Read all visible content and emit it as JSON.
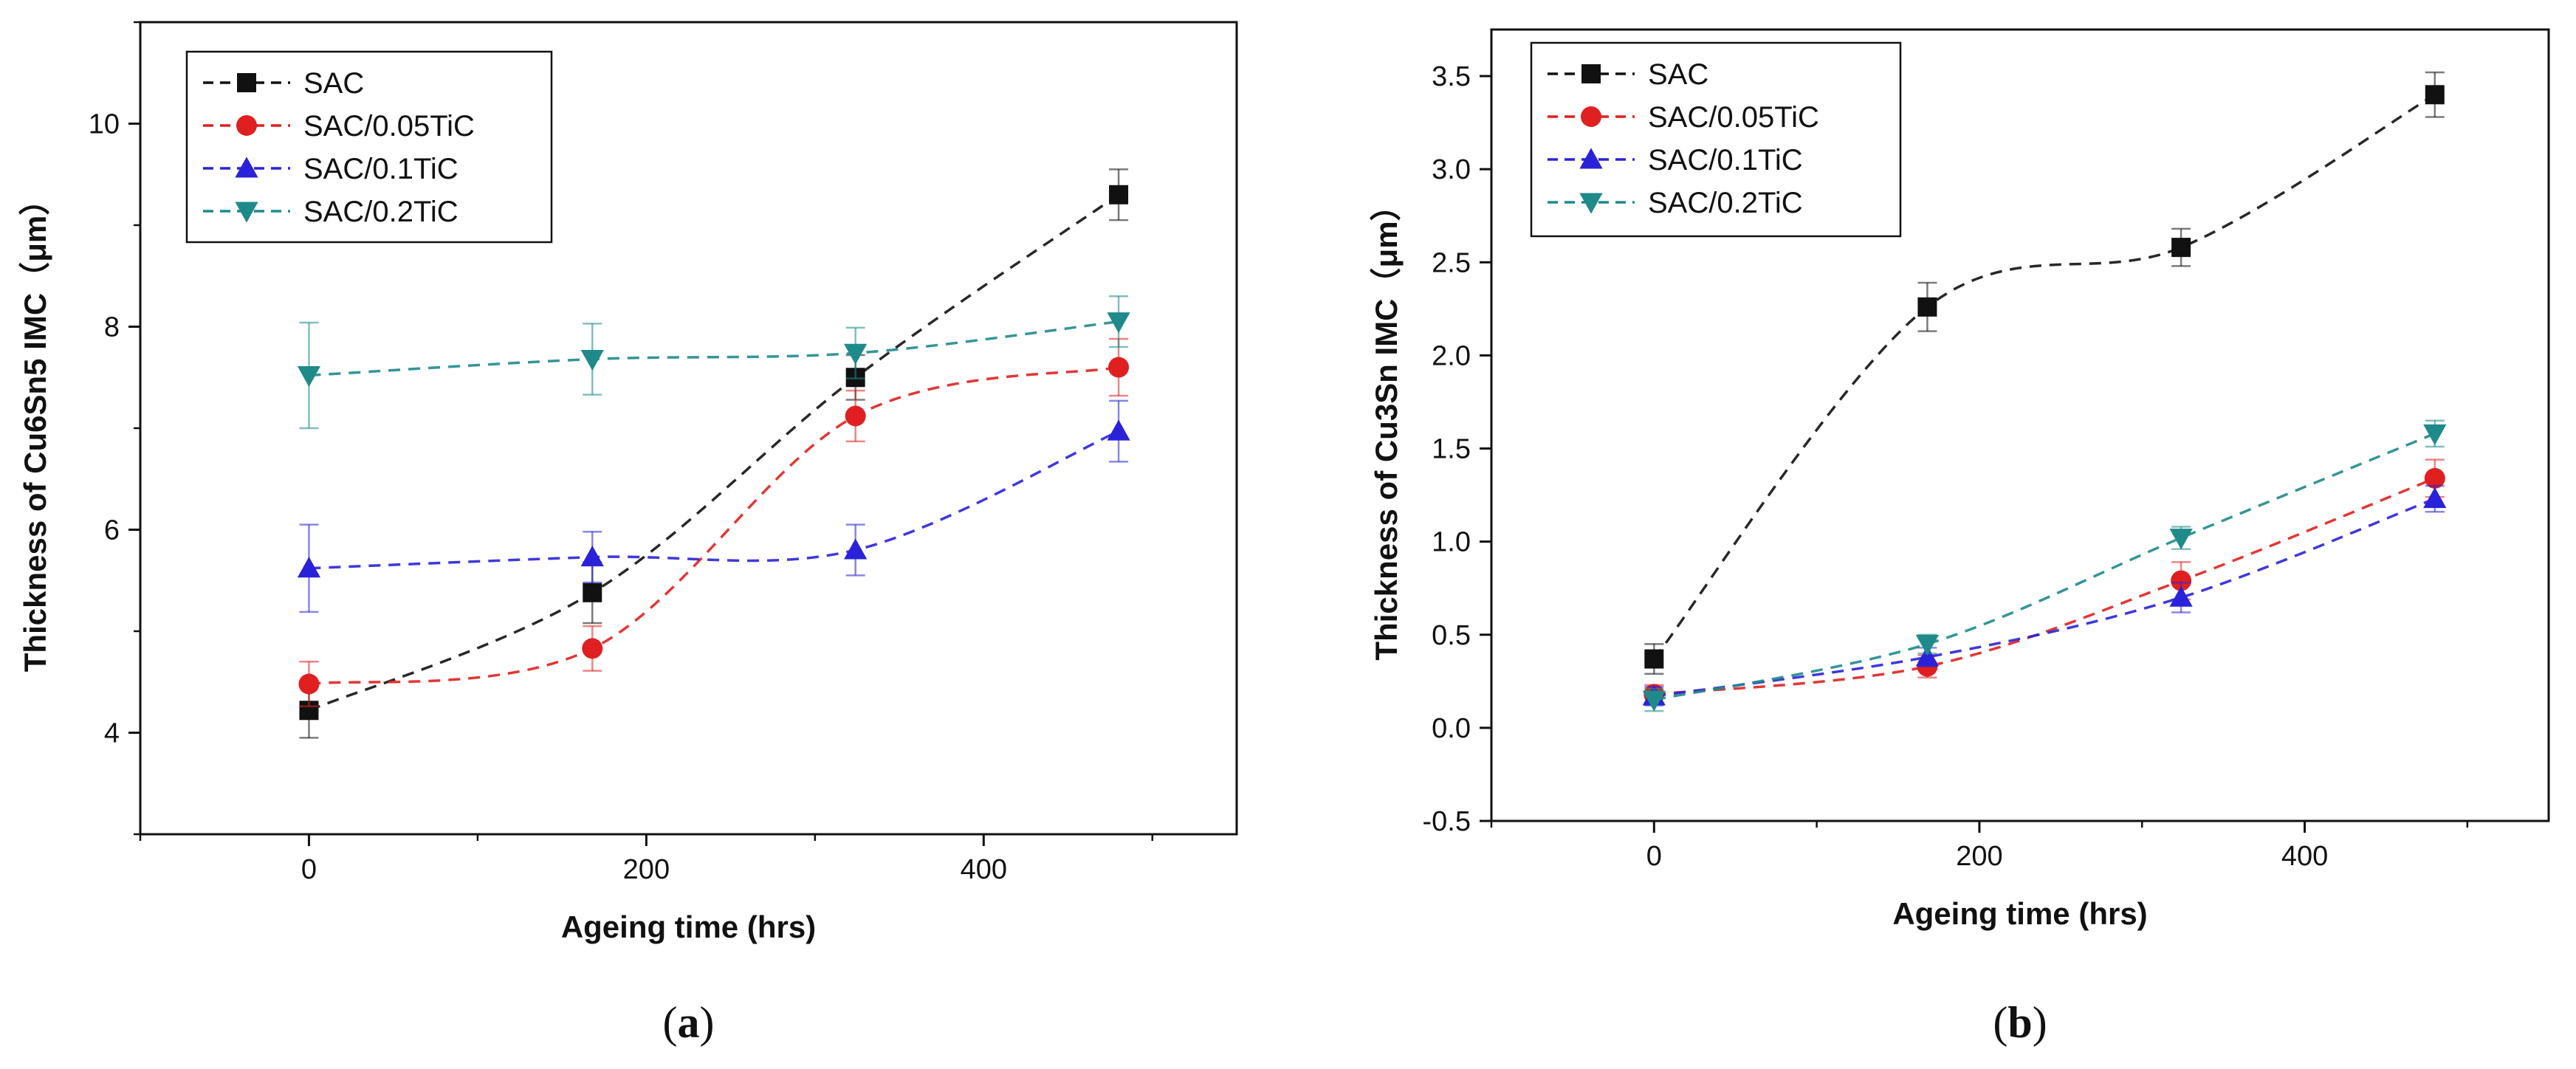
{
  "colors": {
    "SAC": "#111111",
    "SAC/0.05TiC": "#e02020",
    "SAC/0.1TiC": "#2a22d8",
    "SAC/0.2TiC": "#1f8a8a"
  },
  "chart_data": [
    {
      "panel": "(a)",
      "panel_letter": "a",
      "type": "line",
      "xlabel": "Ageing time (hrs)",
      "ylabel": "Thickness of Cu6Sn5 IMC（μm）",
      "xlim": [
        -100,
        550
      ],
      "ylim": [
        3,
        11
      ],
      "x_major_ticks": [
        0,
        200,
        400
      ],
      "x_minor_ticks": [
        -100,
        100,
        300,
        500
      ],
      "y_major_ticks": [
        4,
        6,
        8,
        10
      ],
      "y_minor_ticks": [
        3,
        5,
        7,
        9,
        11
      ],
      "x": [
        0,
        168,
        324,
        480
      ],
      "legend": [
        "SAC",
        "SAC/0.05TiC",
        "SAC/0.1TiC",
        "SAC/0.2TiC"
      ],
      "series": [
        {
          "name": "SAC",
          "marker": "square",
          "values": [
            4.22,
            5.38,
            7.5,
            9.3
          ],
          "errors": [
            0.27,
            0.3,
            0.22,
            0.25
          ]
        },
        {
          "name": "SAC/0.05TiC",
          "marker": "circle",
          "values": [
            4.48,
            4.83,
            7.12,
            7.6
          ],
          "errors": [
            0.22,
            0.22,
            0.25,
            0.28
          ]
        },
        {
          "name": "SAC/0.1TiC",
          "marker": "triangle-up",
          "values": [
            5.62,
            5.73,
            5.8,
            6.97
          ],
          "errors": [
            0.43,
            0.25,
            0.25,
            0.3
          ]
        },
        {
          "name": "SAC/0.2TiC",
          "marker": "triangle-down",
          "values": [
            7.52,
            7.68,
            7.74,
            8.05
          ],
          "errors": [
            0.52,
            0.35,
            0.25,
            0.25
          ]
        }
      ]
    },
    {
      "panel": "(b)",
      "panel_letter": "b",
      "type": "line",
      "xlabel": "Ageing time (hrs)",
      "ylabel": "Thickness of Cu3Sn IMC（μm）",
      "xlim": [
        -100,
        550
      ],
      "ylim": [
        -0.5,
        3.75
      ],
      "x_major_ticks": [
        0,
        200,
        400
      ],
      "x_minor_ticks": [
        -100,
        100,
        300,
        500
      ],
      "y_major_ticks": [
        -0.5,
        0.0,
        0.5,
        1.0,
        1.5,
        2.0,
        2.5,
        3.0,
        3.5
      ],
      "y_tick_labels": [
        "-0.5",
        "0.0",
        "0.5",
        "1.0",
        "1.5",
        "2.0",
        "2.5",
        "3.0",
        "3.5"
      ],
      "x": [
        0,
        168,
        324,
        480
      ],
      "legend": [
        "SAC",
        "SAC/0.05TiC",
        "SAC/0.1TiC",
        "SAC/0.2TiC"
      ],
      "series": [
        {
          "name": "SAC",
          "marker": "square",
          "values": [
            0.37,
            2.26,
            2.58,
            3.4
          ],
          "errors": [
            0.08,
            0.13,
            0.1,
            0.12
          ]
        },
        {
          "name": "SAC/0.05TiC",
          "marker": "circle",
          "values": [
            0.18,
            0.33,
            0.79,
            1.34
          ],
          "errors": [
            0.05,
            0.06,
            0.1,
            0.1
          ]
        },
        {
          "name": "SAC/0.1TiC",
          "marker": "triangle-up",
          "values": [
            0.17,
            0.38,
            0.7,
            1.23
          ],
          "errors": [
            0.05,
            0.05,
            0.08,
            0.07
          ]
        },
        {
          "name": "SAC/0.2TiC",
          "marker": "triangle-down",
          "values": [
            0.15,
            0.45,
            1.02,
            1.58
          ],
          "errors": [
            0.06,
            0.05,
            0.06,
            0.07
          ]
        }
      ]
    }
  ]
}
